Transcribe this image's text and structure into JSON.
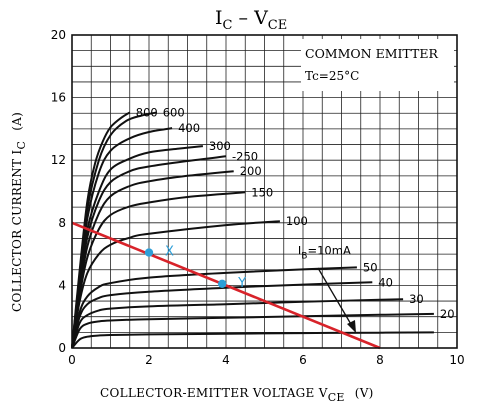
{
  "chart_data": {
    "type": "line",
    "title_main": "I",
    "title_main_sub": "C",
    "title_sep": " – ",
    "title_second": "V",
    "title_second_sub": "CE",
    "xlabel_main": "COLLECTOR-EMITTER VOLTAGE  V",
    "xlabel_sub": "CE",
    "xlabel_unit": "(V)",
    "ylabel_main": "COLLECTOR CURRENT  I",
    "ylabel_sub": "C",
    "ylabel_unit": "(A)",
    "xlim": [
      0,
      10
    ],
    "ylim": [
      0,
      20
    ],
    "x_ticks": [
      "0",
      "2",
      "4",
      "6",
      "8",
      "10"
    ],
    "y_ticks": [
      "0",
      "4",
      "8",
      "12",
      "16",
      "20"
    ],
    "grid": true,
    "legend_box": {
      "line1": "COMMON EMITTER",
      "line2": "Tc=25°C"
    },
    "base_current_prefix": "I",
    "base_current_sub": "B",
    "curves": [
      {
        "label": "=10mA",
        "x": [
          0,
          0.2,
          0.4,
          0.7,
          1,
          2,
          4,
          6,
          8,
          9.4
        ],
        "y": [
          0,
          0.55,
          0.72,
          0.8,
          0.83,
          0.87,
          0.91,
          0.95,
          0.98,
          1.0
        ]
      },
      {
        "label": "20",
        "x": [
          0,
          0.2,
          0.4,
          0.7,
          1,
          2,
          4,
          6,
          8,
          9.4
        ],
        "y": [
          0,
          1.2,
          1.55,
          1.7,
          1.76,
          1.84,
          1.93,
          2.03,
          2.12,
          2.18
        ]
      },
      {
        "label": "30",
        "x": [
          0,
          0.2,
          0.4,
          0.7,
          1,
          2,
          4,
          6,
          8,
          8.6
        ],
        "y": [
          0,
          1.6,
          2.1,
          2.4,
          2.52,
          2.66,
          2.8,
          2.95,
          3.08,
          3.12
        ]
      },
      {
        "label": "40",
        "x": [
          0,
          0.2,
          0.4,
          0.7,
          1,
          2,
          4,
          6,
          7.8
        ],
        "y": [
          0,
          2.0,
          2.8,
          3.2,
          3.38,
          3.6,
          3.85,
          4.05,
          4.2
        ]
      },
      {
        "label": "50",
        "x": [
          0,
          0.2,
          0.4,
          0.7,
          1,
          2,
          4,
          6,
          7.4
        ],
        "y": [
          0,
          2.3,
          3.3,
          3.9,
          4.15,
          4.5,
          4.8,
          5.02,
          5.15
        ]
      },
      {
        "label": "100",
        "x": [
          0,
          0.2,
          0.4,
          0.7,
          1,
          1.5,
          2,
          4,
          5.4
        ],
        "y": [
          0,
          3.0,
          4.8,
          6.0,
          6.6,
          7.05,
          7.3,
          7.85,
          8.1
        ]
      },
      {
        "label": "150",
        "x": [
          0,
          0.2,
          0.4,
          0.7,
          1,
          1.5,
          2,
          3,
          4.5
        ],
        "y": [
          0,
          3.4,
          5.8,
          7.6,
          8.5,
          9.05,
          9.3,
          9.65,
          9.95
        ]
      },
      {
        "label": "200",
        "x": [
          0,
          0.2,
          0.4,
          0.7,
          1,
          1.5,
          2,
          3,
          4.2
        ],
        "y": [
          0,
          3.7,
          6.5,
          8.6,
          9.7,
          10.35,
          10.65,
          11.0,
          11.3
        ]
      },
      {
        "label": "-250",
        "x": [
          0,
          0.2,
          0.4,
          0.7,
          1,
          1.5,
          2,
          3,
          4.0
        ],
        "y": [
          0,
          4.0,
          7.1,
          9.4,
          10.6,
          11.3,
          11.6,
          11.95,
          12.25
        ]
      },
      {
        "label": "300",
        "x": [
          0,
          0.2,
          0.4,
          0.7,
          1,
          1.5,
          2,
          2.8,
          3.4
        ],
        "y": [
          0,
          4.2,
          7.6,
          10.0,
          11.4,
          12.1,
          12.5,
          12.75,
          12.9
        ]
      },
      {
        "label": "400",
        "x": [
          0,
          0.2,
          0.4,
          0.7,
          1,
          1.5,
          2,
          2.6
        ],
        "y": [
          0,
          4.5,
          8.3,
          11.2,
          12.6,
          13.4,
          13.8,
          14.05
        ]
      },
      {
        "label": "600",
        "x": [
          0,
          0.2,
          0.4,
          0.7,
          1,
          1.4,
          1.8,
          2.2
        ],
        "y": [
          0,
          4.7,
          8.9,
          12.0,
          13.6,
          14.5,
          14.85,
          15.05
        ]
      },
      {
        "label": "800",
        "x": [
          0,
          0.2,
          0.4,
          0.6,
          0.8,
          1,
          1.3,
          1.5
        ],
        "y": [
          0,
          5.0,
          9.4,
          11.8,
          13.2,
          14.1,
          14.75,
          15.05
        ]
      }
    ],
    "load_line": {
      "color": "#d8232a",
      "x": [
        0,
        8
      ],
      "y": [
        8,
        0
      ]
    },
    "points": [
      {
        "label": "X",
        "x": 2,
        "y": 6.1,
        "color": "#2e9fd8"
      },
      {
        "label": "Y",
        "x": 3.9,
        "y": 4.1,
        "color": "#2e9fd8"
      }
    ]
  }
}
